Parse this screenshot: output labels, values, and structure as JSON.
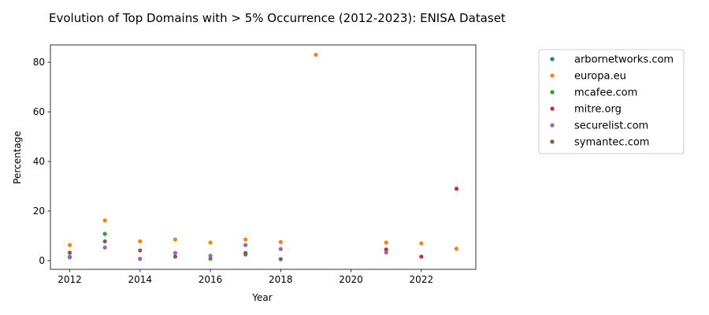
{
  "chart_data": {
    "type": "scatter",
    "title": "Evolution of Top Domains with > 5% Occurrence (2012-2023): ENISA Dataset",
    "xlabel": "Year",
    "ylabel": "Percentage",
    "xlim": [
      2011.45,
      2023.55
    ],
    "ylim": [
      -3.5,
      87
    ],
    "xticks": [
      2012,
      2014,
      2016,
      2018,
      2020,
      2022
    ],
    "yticks": [
      0,
      20,
      40,
      60,
      80
    ],
    "grid": false,
    "legend_position": "outside-right",
    "series": [
      {
        "name": "arbornetworks.com",
        "color": "#1f77b4",
        "points": [
          [
            2012,
            1.5
          ]
        ]
      },
      {
        "name": "europa.eu",
        "color": "#ff7f0e",
        "points": [
          [
            2012,
            6.3
          ],
          [
            2013,
            16.2
          ],
          [
            2014,
            7.8
          ],
          [
            2015,
            8.5
          ],
          [
            2016,
            7.3
          ],
          [
            2017,
            8.5
          ],
          [
            2018,
            7.5
          ],
          [
            2019,
            83
          ],
          [
            2021,
            7.3
          ],
          [
            2022,
            7
          ],
          [
            2023,
            4.8
          ]
        ]
      },
      {
        "name": "mcafee.com",
        "color": "#2ca02c",
        "points": [
          [
            2013,
            10.8
          ],
          [
            2016,
            0.8
          ],
          [
            2017,
            2.5
          ]
        ]
      },
      {
        "name": "mitre.org",
        "color": "#d62728",
        "points": [
          [
            2021,
            4.5
          ],
          [
            2022,
            1.6
          ],
          [
            2023,
            29
          ]
        ]
      },
      {
        "name": "securelist.com",
        "color": "#9467bd",
        "points": [
          [
            2012,
            1.3
          ],
          [
            2013,
            5.3
          ],
          [
            2014,
            0.7
          ],
          [
            2015,
            3.1
          ],
          [
            2016,
            2.0
          ],
          [
            2017,
            6.3
          ],
          [
            2018,
            4.7
          ],
          [
            2021,
            3.3
          ]
        ]
      },
      {
        "name": "symantec.com",
        "color": "#8c564b",
        "points": [
          [
            2012,
            3.2
          ],
          [
            2013,
            7.8
          ],
          [
            2014,
            4.1
          ],
          [
            2015,
            1.6
          ],
          [
            2017,
            3.1
          ],
          [
            2018,
            0.6
          ]
        ]
      }
    ]
  }
}
